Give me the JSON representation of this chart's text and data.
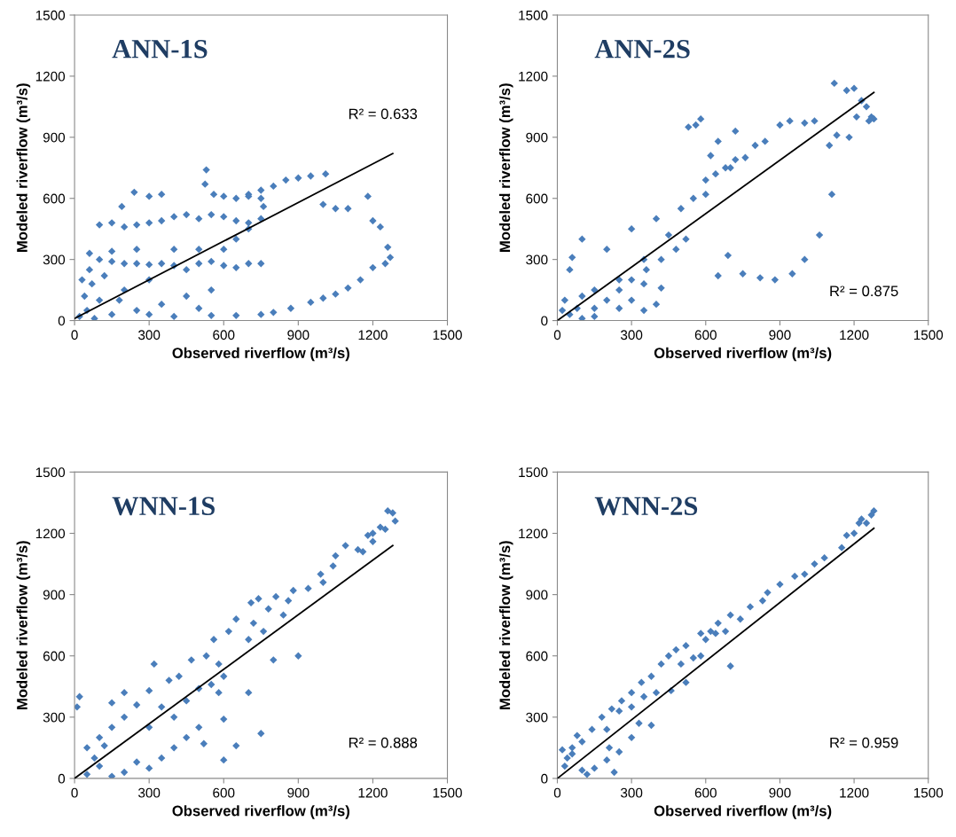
{
  "chart_data": [
    {
      "type": "scatter",
      "title": "ANN-1S",
      "xlabel": "Observed riverflow (m³/s)",
      "ylabel": "Modeled riverflow (m³/s)",
      "annotations": [
        "R² = 0.633"
      ],
      "xlim": [
        0,
        1500
      ],
      "ylim": [
        0,
        1500
      ],
      "xticks": [
        0,
        300,
        600,
        900,
        1200,
        1500
      ],
      "yticks": [
        0,
        300,
        600,
        900,
        1200,
        1500
      ],
      "series": [
        {
          "marker": "diamond",
          "color": "#4a7ebb",
          "x": [
            550,
            650,
            750,
            800,
            870,
            950,
            1000,
            1050,
            1100,
            1150,
            1200,
            1250,
            1270,
            1260,
            1230,
            1200,
            1180,
            1100,
            1050,
            1000,
            700,
            750,
            800,
            850,
            900,
            950,
            1010,
            530,
            525,
            560,
            600,
            650,
            700,
            750,
            760,
            750,
            700,
            650,
            600,
            550,
            500,
            450,
            400,
            350,
            300,
            250,
            200,
            150,
            100,
            240,
            300,
            350,
            190,
            100,
            150,
            200,
            250,
            300,
            350,
            400,
            450,
            500,
            550,
            600,
            650,
            700,
            750,
            600,
            650,
            700,
            500,
            400,
            300,
            200,
            100,
            50,
            20,
            30,
            60,
            120,
            180,
            250,
            350,
            400,
            450,
            550,
            500,
            300,
            150,
            80,
            40,
            70,
            250,
            150,
            60
          ],
          "values": [
            25,
            25,
            30,
            40,
            60,
            90,
            110,
            130,
            160,
            200,
            260,
            280,
            310,
            360,
            460,
            490,
            610,
            550,
            550,
            570,
            620,
            640,
            660,
            690,
            700,
            710,
            720,
            740,
            670,
            620,
            610,
            600,
            610,
            600,
            560,
            500,
            480,
            490,
            510,
            520,
            500,
            520,
            510,
            490,
            480,
            470,
            460,
            480,
            470,
            630,
            610,
            620,
            560,
            300,
            290,
            280,
            280,
            275,
            280,
            270,
            250,
            280,
            290,
            270,
            260,
            280,
            280,
            350,
            400,
            450,
            350,
            350,
            200,
            150,
            100,
            50,
            20,
            200,
            250,
            220,
            100,
            50,
            80,
            20,
            120,
            150,
            60,
            30,
            30,
            10,
            120,
            180,
            350,
            340,
            330
          ]
        },
        {
          "type": "line",
          "color": "#000000",
          "x": [
            0,
            1280
          ],
          "values": [
            10,
            820
          ]
        }
      ]
    },
    {
      "type": "scatter",
      "title": "ANN-2S",
      "xlabel": "Observed riverflow (m³/s)",
      "ylabel": "Modeled riverflow (m³/s)",
      "annotations": [
        "R² = 0.875"
      ],
      "xlim": [
        0,
        1500
      ],
      "ylim": [
        0,
        1500
      ],
      "xticks": [
        0,
        300,
        600,
        900,
        1200,
        1500
      ],
      "yticks": [
        0,
        300,
        600,
        900,
        1200,
        1500
      ],
      "series": [
        {
          "marker": "diamond",
          "color": "#4a7ebb",
          "x": [
            1120,
            1170,
            1200,
            1230,
            1250,
            1270,
            1280,
            1260,
            1210,
            1180,
            1130,
            1100,
            1040,
            1000,
            940,
            900,
            840,
            800,
            760,
            720,
            680,
            640,
            600,
            560,
            580,
            530,
            650,
            620,
            700,
            720,
            1110,
            1060,
            1000,
            950,
            880,
            820,
            750,
            690,
            650,
            520,
            480,
            420,
            360,
            300,
            250,
            200,
            150,
            350,
            400,
            420,
            350,
            300,
            250,
            150,
            100,
            50,
            20,
            50,
            60,
            100,
            200,
            300,
            400,
            500,
            550,
            600,
            450,
            350,
            250,
            150,
            100,
            30,
            80
          ],
          "values": [
            1165,
            1130,
            1140,
            1080,
            1050,
            1000,
            990,
            980,
            1000,
            900,
            910,
            860,
            980,
            970,
            980,
            960,
            880,
            860,
            800,
            790,
            750,
            720,
            690,
            960,
            990,
            950,
            880,
            810,
            750,
            930,
            620,
            420,
            300,
            230,
            200,
            210,
            230,
            320,
            220,
            400,
            350,
            300,
            250,
            200,
            150,
            100,
            60,
            50,
            80,
            160,
            180,
            100,
            60,
            20,
            10,
            30,
            50,
            250,
            310,
            400,
            350,
            450,
            500,
            550,
            600,
            620,
            420,
            300,
            200,
            150,
            120,
            100,
            60
          ]
        },
        {
          "type": "line",
          "color": "#000000",
          "x": [
            0,
            1280
          ],
          "values": [
            0,
            1120
          ]
        }
      ]
    },
    {
      "type": "scatter",
      "title": "WNN-1S",
      "xlabel": "Observed riverflow (m³/s)",
      "ylabel": "Modeled riverflow (m³/s)",
      "annotations": [
        "R² = 0.888"
      ],
      "xlim": [
        0,
        1500
      ],
      "ylim": [
        0,
        1500
      ],
      "xticks": [
        0,
        300,
        600,
        900,
        1200,
        1500
      ],
      "yticks": [
        0,
        300,
        600,
        900,
        1200,
        1500
      ],
      "series": [
        {
          "marker": "diamond",
          "color": "#4a7ebb",
          "x": [
            1260,
            1280,
            1290,
            1250,
            1230,
            1200,
            1180,
            1200,
            1090,
            1140,
            1160,
            1050,
            1040,
            990,
            1000,
            940,
            880,
            860,
            810,
            780,
            740,
            710,
            720,
            700,
            760,
            840,
            900,
            650,
            620,
            560,
            580,
            530,
            470,
            420,
            380,
            320,
            300,
            250,
            200,
            150,
            100,
            50,
            20,
            10,
            150,
            200,
            800,
            750,
            650,
            600,
            700,
            580,
            500,
            450,
            400,
            350,
            300,
            250,
            200,
            150,
            100,
            50,
            80,
            120,
            400,
            300,
            500,
            600,
            350,
            450,
            550,
            520,
            600
          ],
          "values": [
            1310,
            1300,
            1260,
            1220,
            1230,
            1200,
            1190,
            1160,
            1140,
            1120,
            1110,
            1090,
            1040,
            1000,
            960,
            930,
            920,
            870,
            890,
            830,
            880,
            860,
            760,
            680,
            720,
            800,
            600,
            780,
            720,
            680,
            560,
            600,
            580,
            500,
            480,
            560,
            430,
            360,
            300,
            250,
            200,
            150,
            400,
            350,
            370,
            420,
            580,
            220,
            160,
            290,
            420,
            420,
            250,
            200,
            150,
            100,
            50,
            80,
            30,
            10,
            60,
            20,
            100,
            160,
            300,
            250,
            440,
            500,
            350,
            380,
            460,
            170,
            90
          ]
        },
        {
          "type": "line",
          "color": "#000000",
          "x": [
            0,
            1280
          ],
          "values": [
            0,
            1140
          ]
        }
      ]
    },
    {
      "type": "scatter",
      "title": "WNN-2S",
      "xlabel": "Observed riverflow (m³/s)",
      "ylabel": "Modeled riverflow (m³/s)",
      "annotations": [
        "R² = 0.959"
      ],
      "xlim": [
        0,
        1500
      ],
      "ylim": [
        0,
        1500
      ],
      "xticks": [
        0,
        300,
        600,
        900,
        1200,
        1500
      ],
      "yticks": [
        0,
        300,
        600,
        900,
        1200,
        1500
      ],
      "series": [
        {
          "marker": "diamond",
          "color": "#4a7ebb",
          "x": [
            1280,
            1270,
            1250,
            1220,
            1230,
            1170,
            1200,
            1150,
            1080,
            1040,
            1000,
            960,
            900,
            850,
            830,
            780,
            740,
            700,
            650,
            620,
            580,
            600,
            520,
            480,
            450,
            420,
            380,
            340,
            300,
            260,
            220,
            180,
            140,
            100,
            60,
            30,
            700,
            580,
            520,
            460,
            380,
            330,
            300,
            250,
            200,
            150,
            120,
            100,
            60,
            80,
            20,
            40,
            250,
            200,
            300,
            400,
            350,
            500,
            550,
            640,
            680,
            230,
            210
          ],
          "values": [
            1310,
            1290,
            1250,
            1250,
            1270,
            1190,
            1200,
            1130,
            1080,
            1050,
            1000,
            990,
            950,
            910,
            870,
            840,
            780,
            800,
            760,
            720,
            710,
            680,
            650,
            630,
            600,
            560,
            500,
            470,
            420,
            380,
            340,
            300,
            240,
            180,
            120,
            60,
            550,
            600,
            470,
            430,
            260,
            270,
            200,
            130,
            90,
            50,
            20,
            40,
            150,
            210,
            140,
            100,
            330,
            240,
            350,
            420,
            400,
            560,
            590,
            710,
            720,
            30,
            150
          ]
        },
        {
          "type": "line",
          "color": "#000000",
          "x": [
            0,
            1280
          ],
          "values": [
            0,
            1225
          ]
        }
      ]
    }
  ]
}
